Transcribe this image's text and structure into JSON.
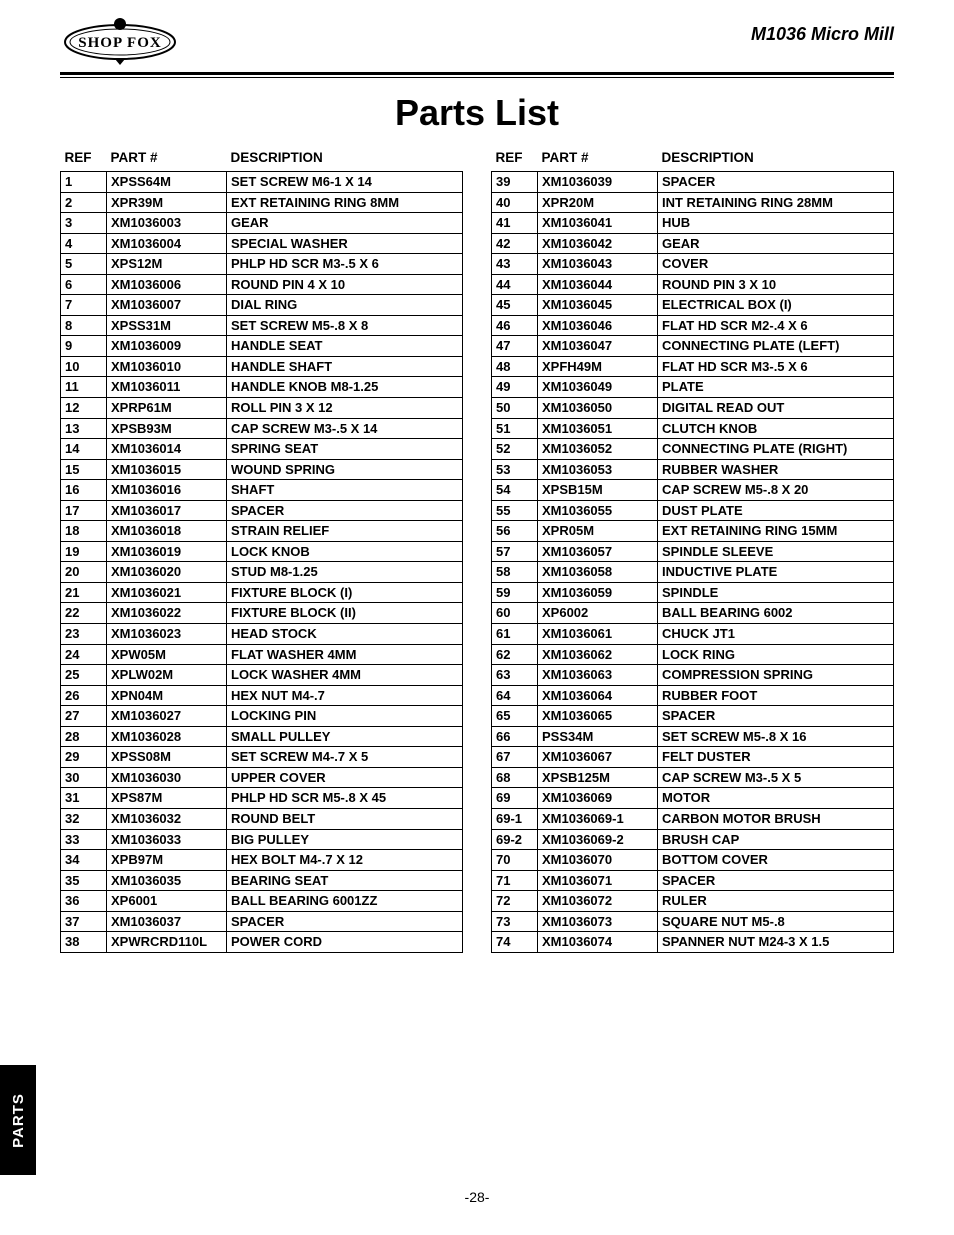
{
  "header": {
    "brand": "SHOP FOX",
    "product": "M1036 Micro Mill"
  },
  "title": "Parts List",
  "columns": [
    "REF",
    "PART #",
    "DESCRIPTION"
  ],
  "pageNumber": "-28-",
  "sideTab": "PARTS",
  "left": [
    {
      "ref": "1",
      "part": "XPSS64M",
      "desc": "SET SCREW M6-1 X 14"
    },
    {
      "ref": "2",
      "part": "XPR39M",
      "desc": "EXT RETAINING RING 8MM"
    },
    {
      "ref": "3",
      "part": "XM1036003",
      "desc": "GEAR"
    },
    {
      "ref": "4",
      "part": "XM1036004",
      "desc": "SPECIAL WASHER"
    },
    {
      "ref": "5",
      "part": "XPS12M",
      "desc": "PHLP HD SCR M3-.5 X 6"
    },
    {
      "ref": "6",
      "part": "XM1036006",
      "desc": "ROUND PIN 4 X 10"
    },
    {
      "ref": "7",
      "part": "XM1036007",
      "desc": "DIAL RING"
    },
    {
      "ref": "8",
      "part": "XPSS31M",
      "desc": "SET SCREW M5-.8 X 8"
    },
    {
      "ref": "9",
      "part": "XM1036009",
      "desc": "HANDLE SEAT"
    },
    {
      "ref": "10",
      "part": "XM1036010",
      "desc": "HANDLE SHAFT"
    },
    {
      "ref": "11",
      "part": "XM1036011",
      "desc": "HANDLE KNOB M8-1.25"
    },
    {
      "ref": "12",
      "part": "XPRP61M",
      "desc": "ROLL PIN 3 X 12"
    },
    {
      "ref": "13",
      "part": "XPSB93M",
      "desc": "CAP SCREW M3-.5 X 14"
    },
    {
      "ref": "14",
      "part": "XM1036014",
      "desc": "SPRING SEAT"
    },
    {
      "ref": "15",
      "part": "XM1036015",
      "desc": "WOUND SPRING"
    },
    {
      "ref": "16",
      "part": "XM1036016",
      "desc": "SHAFT"
    },
    {
      "ref": "17",
      "part": "XM1036017",
      "desc": "SPACER"
    },
    {
      "ref": "18",
      "part": "XM1036018",
      "desc": "STRAIN RELIEF"
    },
    {
      "ref": "19",
      "part": "XM1036019",
      "desc": "LOCK KNOB"
    },
    {
      "ref": "20",
      "part": "XM1036020",
      "desc": "STUD M8-1.25"
    },
    {
      "ref": "21",
      "part": "XM1036021",
      "desc": "FIXTURE BLOCK (I)"
    },
    {
      "ref": "22",
      "part": "XM1036022",
      "desc": "FIXTURE BLOCK (II)"
    },
    {
      "ref": "23",
      "part": "XM1036023",
      "desc": "HEAD STOCK"
    },
    {
      "ref": "24",
      "part": "XPW05M",
      "desc": "FLAT WASHER 4MM"
    },
    {
      "ref": "25",
      "part": "XPLW02M",
      "desc": "LOCK WASHER 4MM"
    },
    {
      "ref": "26",
      "part": "XPN04M",
      "desc": "HEX NUT M4-.7"
    },
    {
      "ref": "27",
      "part": "XM1036027",
      "desc": "LOCKING PIN"
    },
    {
      "ref": "28",
      "part": "XM1036028",
      "desc": "SMALL PULLEY"
    },
    {
      "ref": "29",
      "part": "XPSS08M",
      "desc": "SET SCREW M4-.7 X 5"
    },
    {
      "ref": "30",
      "part": "XM1036030",
      "desc": "UPPER COVER"
    },
    {
      "ref": "31",
      "part": "XPS87M",
      "desc": "PHLP HD SCR M5-.8 X 45"
    },
    {
      "ref": "32",
      "part": "XM1036032",
      "desc": "ROUND BELT"
    },
    {
      "ref": "33",
      "part": "XM1036033",
      "desc": "BIG PULLEY"
    },
    {
      "ref": "34",
      "part": "XPB97M",
      "desc": "HEX BOLT M4-.7 X 12"
    },
    {
      "ref": "35",
      "part": "XM1036035",
      "desc": "BEARING SEAT"
    },
    {
      "ref": "36",
      "part": "XP6001",
      "desc": "BALL BEARING 6001ZZ"
    },
    {
      "ref": "37",
      "part": "XM1036037",
      "desc": "SPACER"
    },
    {
      "ref": "38",
      "part": "XPWRCRD110L",
      "desc": "POWER CORD"
    }
  ],
  "right": [
    {
      "ref": "39",
      "part": "XM1036039",
      "desc": "SPACER"
    },
    {
      "ref": "40",
      "part": "XPR20M",
      "desc": "INT RETAINING RING 28MM"
    },
    {
      "ref": "41",
      "part": "XM1036041",
      "desc": "HUB"
    },
    {
      "ref": "42",
      "part": "XM1036042",
      "desc": "GEAR"
    },
    {
      "ref": "43",
      "part": "XM1036043",
      "desc": "COVER"
    },
    {
      "ref": "44",
      "part": "XM1036044",
      "desc": "ROUND PIN 3 X 10"
    },
    {
      "ref": "45",
      "part": "XM1036045",
      "desc": "ELECTRICAL BOX (I)"
    },
    {
      "ref": "46",
      "part": "XM1036046",
      "desc": "FLAT HD SCR M2-.4 X 6"
    },
    {
      "ref": "47",
      "part": "XM1036047",
      "desc": "CONNECTING PLATE (LEFT)"
    },
    {
      "ref": "48",
      "part": "XPFH49M",
      "desc": "FLAT HD SCR M3-.5 X 6"
    },
    {
      "ref": "49",
      "part": "XM1036049",
      "desc": "PLATE"
    },
    {
      "ref": "50",
      "part": "XM1036050",
      "desc": "DIGITAL READ OUT"
    },
    {
      "ref": "51",
      "part": "XM1036051",
      "desc": "CLUTCH KNOB"
    },
    {
      "ref": "52",
      "part": "XM1036052",
      "desc": "CONNECTING PLATE (RIGHT)"
    },
    {
      "ref": "53",
      "part": "XM1036053",
      "desc": "RUBBER WASHER"
    },
    {
      "ref": "54",
      "part": "XPSB15M",
      "desc": "CAP SCREW M5-.8 X 20"
    },
    {
      "ref": "55",
      "part": "XM1036055",
      "desc": "DUST PLATE"
    },
    {
      "ref": "56",
      "part": "XPR05M",
      "desc": "EXT RETAINING RING 15MM"
    },
    {
      "ref": "57",
      "part": "XM1036057",
      "desc": "SPINDLE SLEEVE"
    },
    {
      "ref": "58",
      "part": "XM1036058",
      "desc": "INDUCTIVE PLATE"
    },
    {
      "ref": "59",
      "part": "XM1036059",
      "desc": "SPINDLE"
    },
    {
      "ref": "60",
      "part": "XP6002",
      "desc": "BALL BEARING 6002"
    },
    {
      "ref": "61",
      "part": "XM1036061",
      "desc": "CHUCK JT1"
    },
    {
      "ref": "62",
      "part": "XM1036062",
      "desc": "LOCK RING"
    },
    {
      "ref": "63",
      "part": "XM1036063",
      "desc": "COMPRESSION SPRING"
    },
    {
      "ref": "64",
      "part": "XM1036064",
      "desc": "RUBBER FOOT"
    },
    {
      "ref": "65",
      "part": "XM1036065",
      "desc": "SPACER"
    },
    {
      "ref": "66",
      "part": "PSS34M",
      "desc": "SET SCREW M5-.8 X 16"
    },
    {
      "ref": "67",
      "part": "XM1036067",
      "desc": "FELT DUSTER"
    },
    {
      "ref": "68",
      "part": "XPSB125M",
      "desc": "CAP SCREW M3-.5 X 5"
    },
    {
      "ref": "69",
      "part": "XM1036069",
      "desc": "MOTOR"
    },
    {
      "ref": "69-1",
      "part": "XM1036069-1",
      "desc": "CARBON MOTOR BRUSH"
    },
    {
      "ref": "69-2",
      "part": "XM1036069-2",
      "desc": "BRUSH CAP"
    },
    {
      "ref": "70",
      "part": "XM1036070",
      "desc": "BOTTOM COVER"
    },
    {
      "ref": "71",
      "part": "XM1036071",
      "desc": "SPACER"
    },
    {
      "ref": "72",
      "part": "XM1036072",
      "desc": "RULER"
    },
    {
      "ref": "73",
      "part": "XM1036073",
      "desc": "SQUARE NUT M5-.8"
    },
    {
      "ref": "74",
      "part": "XM1036074",
      "desc": "SPANNER NUT M24-3 X 1.5"
    }
  ]
}
